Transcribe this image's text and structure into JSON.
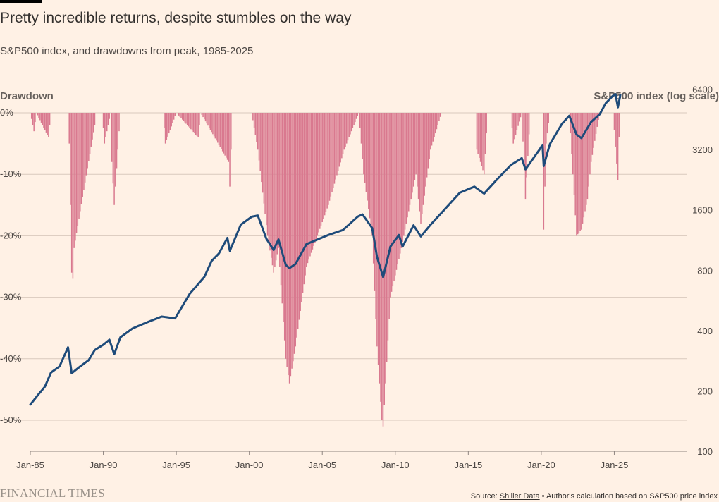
{
  "header": {
    "title": "Pretty incredible returns, despite stumbles on the way",
    "subtitle": "S&P500 index, and drawdowns from peak, 1985-2025",
    "left_axis_title": "Drawdown",
    "right_axis_title": "S&P500 index (log scale)"
  },
  "footer": {
    "logo": "FINANCIAL TIMES",
    "source_prefix": "Source: ",
    "source_link": "Shiller Data",
    "source_suffix": " • Author's calculation based on S&P500 price index"
  },
  "colors": {
    "background": "#fff1e5",
    "drawdown_bars": "#d9798f",
    "index_line": "#1e4b7a",
    "grid": "#d9c9bd",
    "axis": "#8f8580"
  },
  "chart_data": {
    "type": "bar+line",
    "title": "Pretty incredible returns, despite stumbles on the way",
    "subtitle": "S&P500 index, and drawdowns from peak, 1985-2025",
    "x_axis": {
      "type": "date",
      "ticks": [
        "Jan-85",
        "Jan-90",
        "Jan-95",
        "Jan-00",
        "Jan-05",
        "Jan-10",
        "Jan-15",
        "Jan-20",
        "Jan-25"
      ],
      "range": [
        "1985-01",
        "2030-01"
      ]
    },
    "left_axis": {
      "label": "Drawdown",
      "unit": "%",
      "range": [
        -55,
        0
      ],
      "ticks": [
        0,
        -10,
        -20,
        -30,
        -40,
        -50
      ],
      "tick_labels": [
        "0%",
        "-10%",
        "-20%",
        "-30%",
        "-40%",
        "-50%"
      ]
    },
    "right_axis": {
      "label": "S&P500 index (log scale)",
      "scale": "log",
      "range": [
        100,
        12000
      ],
      "ticks": [
        100,
        200,
        400,
        800,
        1600,
        3200,
        6400
      ],
      "tick_labels": [
        "100",
        "200",
        "400",
        "800",
        "1600",
        "3200",
        "6400"
      ]
    },
    "grid": true,
    "drawdown_anchors": [
      [
        "1985-01",
        0
      ],
      [
        "1985-04",
        -3
      ],
      [
        "1985-06",
        0
      ],
      [
        "1986-04",
        -4
      ],
      [
        "1986-06",
        0
      ],
      [
        "1987-08",
        0
      ],
      [
        "1987-09",
        -5
      ],
      [
        "1987-10",
        -15
      ],
      [
        "1987-11",
        -26
      ],
      [
        "1987-12",
        -27
      ],
      [
        "1988-01",
        -22
      ],
      [
        "1988-06",
        -16
      ],
      [
        "1989-06",
        -2
      ],
      [
        "1989-07",
        0
      ],
      [
        "1989-12",
        0
      ],
      [
        "1990-02",
        -5
      ],
      [
        "1990-07",
        0
      ],
      [
        "1990-08",
        -8
      ],
      [
        "1990-10",
        -15
      ],
      [
        "1991-02",
        -3
      ],
      [
        "1991-03",
        0
      ],
      [
        "1993-10",
        0
      ],
      [
        "1994-02",
        0
      ],
      [
        "1994-04",
        -5
      ],
      [
        "1995-01",
        0
      ],
      [
        "1996-07",
        -4
      ],
      [
        "1996-09",
        0
      ],
      [
        "1998-08",
        -8
      ],
      [
        "1998-09",
        -12
      ],
      [
        "1998-11",
        0
      ],
      [
        "2000-03",
        0
      ],
      [
        "2000-08",
        -6
      ],
      [
        "2001-04",
        -20
      ],
      [
        "2001-09",
        -26
      ],
      [
        "2002-01",
        -22
      ],
      [
        "2002-07",
        -40
      ],
      [
        "2002-10",
        -44
      ],
      [
        "2003-03",
        -38
      ],
      [
        "2003-12",
        -25
      ],
      [
        "2005-06",
        -15
      ],
      [
        "2006-07",
        -6
      ],
      [
        "2007-07",
        0
      ],
      [
        "2007-11",
        -10
      ],
      [
        "2008-06",
        -20
      ],
      [
        "2008-10",
        -38
      ],
      [
        "2008-12",
        -44
      ],
      [
        "2009-02",
        -50
      ],
      [
        "2009-03",
        -51
      ],
      [
        "2009-09",
        -30
      ],
      [
        "2010-06",
        -22
      ],
      [
        "2011-06",
        -10
      ],
      [
        "2011-10",
        -18
      ],
      [
        "2012-06",
        -6
      ],
      [
        "2013-03",
        0
      ],
      [
        "2015-07",
        0
      ],
      [
        "2015-08",
        -6
      ],
      [
        "2016-02",
        -10
      ],
      [
        "2016-05",
        0
      ],
      [
        "2017-12",
        0
      ],
      [
        "2018-02",
        -5
      ],
      [
        "2018-09",
        0
      ],
      [
        "2018-12",
        -14
      ],
      [
        "2019-04",
        0
      ],
      [
        "2020-02",
        0
      ],
      [
        "2020-03",
        -19
      ],
      [
        "2020-05",
        -5
      ],
      [
        "2020-08",
        0
      ],
      [
        "2021-12",
        0
      ],
      [
        "2022-06",
        -20
      ],
      [
        "2022-10",
        -19
      ],
      [
        "2023-03",
        -14
      ],
      [
        "2023-06",
        -8
      ],
      [
        "2024-01",
        0
      ],
      [
        "2024-12",
        0
      ],
      [
        "2025-04",
        -11
      ],
      [
        "2025-05",
        -4
      ],
      [
        "2025-06",
        0
      ]
    ],
    "index_anchors": [
      [
        "1985-01",
        171
      ],
      [
        "1985-04",
        180
      ],
      [
        "1985-07",
        190
      ],
      [
        "1986-01",
        210
      ],
      [
        "1986-06",
        247
      ],
      [
        "1987-01",
        265
      ],
      [
        "1987-08",
        330
      ],
      [
        "1987-11",
        245
      ],
      [
        "1988-06",
        265
      ],
      [
        "1989-01",
        285
      ],
      [
        "1989-06",
        320
      ],
      [
        "1990-01",
        340
      ],
      [
        "1990-06",
        360
      ],
      [
        "1990-10",
        305
      ],
      [
        "1991-03",
        370
      ],
      [
        "1992-01",
        410
      ],
      [
        "1993-01",
        440
      ],
      [
        "1994-01",
        470
      ],
      [
        "1994-12",
        460
      ],
      [
        "1995-12",
        610
      ],
      [
        "1996-12",
        740
      ],
      [
        "1997-06",
        890
      ],
      [
        "1997-12",
        970
      ],
      [
        "1998-07",
        1160
      ],
      [
        "1998-09",
        1000
      ],
      [
        "1999-06",
        1350
      ],
      [
        "2000-03",
        1480
      ],
      [
        "2000-08",
        1500
      ],
      [
        "2001-03",
        1150
      ],
      [
        "2001-09",
        1010
      ],
      [
        "2002-01",
        1140
      ],
      [
        "2002-07",
        850
      ],
      [
        "2002-10",
        820
      ],
      [
        "2003-03",
        860
      ],
      [
        "2003-12",
        1080
      ],
      [
        "2005-06",
        1200
      ],
      [
        "2006-06",
        1270
      ],
      [
        "2007-06",
        1480
      ],
      [
        "2007-10",
        1520
      ],
      [
        "2008-06",
        1300
      ],
      [
        "2008-10",
        930
      ],
      [
        "2009-03",
        740
      ],
      [
        "2009-09",
        1050
      ],
      [
        "2010-04",
        1200
      ],
      [
        "2010-07",
        1050
      ],
      [
        "2011-04",
        1340
      ],
      [
        "2011-10",
        1180
      ],
      [
        "2012-06",
        1350
      ],
      [
        "2013-06",
        1620
      ],
      [
        "2014-06",
        1950
      ],
      [
        "2015-06",
        2090
      ],
      [
        "2016-02",
        1930
      ],
      [
        "2016-12",
        2250
      ],
      [
        "2017-12",
        2680
      ],
      [
        "2018-09",
        2900
      ],
      [
        "2018-12",
        2550
      ],
      [
        "2019-12",
        3230
      ],
      [
        "2020-02",
        3380
      ],
      [
        "2020-03",
        2650
      ],
      [
        "2020-08",
        3400
      ],
      [
        "2021-06",
        4300
      ],
      [
        "2021-12",
        4720
      ],
      [
        "2022-06",
        3800
      ],
      [
        "2022-10",
        3650
      ],
      [
        "2023-06",
        4400
      ],
      [
        "2024-01",
        4800
      ],
      [
        "2024-06",
        5450
      ],
      [
        "2024-12",
        5950
      ],
      [
        "2025-02",
        6050
      ],
      [
        "2025-04",
        5200
      ],
      [
        "2025-06",
        6000
      ]
    ]
  }
}
